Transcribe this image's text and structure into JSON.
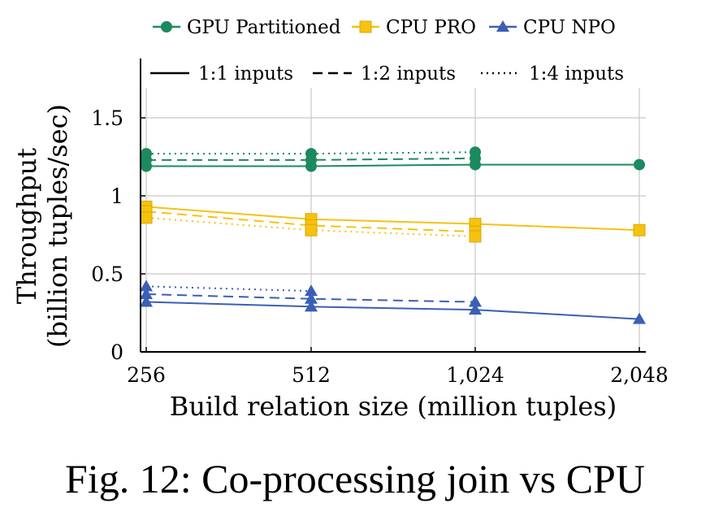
{
  "caption": "Fig. 12: Co-processing join vs CPU",
  "chart_data": {
    "type": "line",
    "xlabel": "Build relation size (million tuples)",
    "ylabel_lines": [
      "Throughput",
      "(billion tuples/sec)"
    ],
    "x": [
      256,
      512,
      1024,
      2048
    ],
    "x_tick_labels": [
      "256",
      "512",
      "1,024",
      "2,048"
    ],
    "y_ticks": [
      0,
      0.5,
      1,
      1.5
    ],
    "y_tick_labels": [
      "0",
      "0.5",
      "1",
      "1.5"
    ],
    "ylim": [
      0,
      1.88
    ],
    "grid": true,
    "legend_algorithms": [
      {
        "name": "GPU Partitioned",
        "color": "#1b8a5e",
        "marker": "circle"
      },
      {
        "name": "CPU PRO",
        "color": "#f5c211",
        "marker": "square"
      },
      {
        "name": "CPU NPO",
        "color": "#3b5fb5",
        "marker": "triangle"
      }
    ],
    "legend_ratios": [
      {
        "name": "1:1 inputs",
        "dash": "solid"
      },
      {
        "name": "1:2 inputs",
        "dash": "dashed"
      },
      {
        "name": "1:4 inputs",
        "dash": "dotted"
      }
    ],
    "series": [
      {
        "algorithm": "GPU Partitioned",
        "ratio": "1:1 inputs",
        "values": [
          1.19,
          1.19,
          1.2,
          1.2
        ]
      },
      {
        "algorithm": "GPU Partitioned",
        "ratio": "1:2 inputs",
        "values": [
          1.23,
          1.23,
          1.24,
          null
        ]
      },
      {
        "algorithm": "GPU Partitioned",
        "ratio": "1:4 inputs",
        "values": [
          1.27,
          1.27,
          1.28,
          null
        ]
      },
      {
        "algorithm": "CPU PRO",
        "ratio": "1:1 inputs",
        "values": [
          0.93,
          0.85,
          0.82,
          0.78
        ]
      },
      {
        "algorithm": "CPU PRO",
        "ratio": "1:2 inputs",
        "values": [
          0.9,
          0.81,
          0.77,
          null
        ]
      },
      {
        "algorithm": "CPU PRO",
        "ratio": "1:4 inputs",
        "values": [
          0.86,
          0.78,
          0.74,
          null
        ]
      },
      {
        "algorithm": "CPU NPO",
        "ratio": "1:1 inputs",
        "values": [
          0.32,
          0.29,
          0.27,
          0.21
        ]
      },
      {
        "algorithm": "CPU NPO",
        "ratio": "1:2 inputs",
        "values": [
          0.37,
          0.34,
          0.32,
          null
        ]
      },
      {
        "algorithm": "CPU NPO",
        "ratio": "1:4 inputs",
        "values": [
          0.42,
          0.39,
          null,
          null
        ]
      }
    ]
  }
}
